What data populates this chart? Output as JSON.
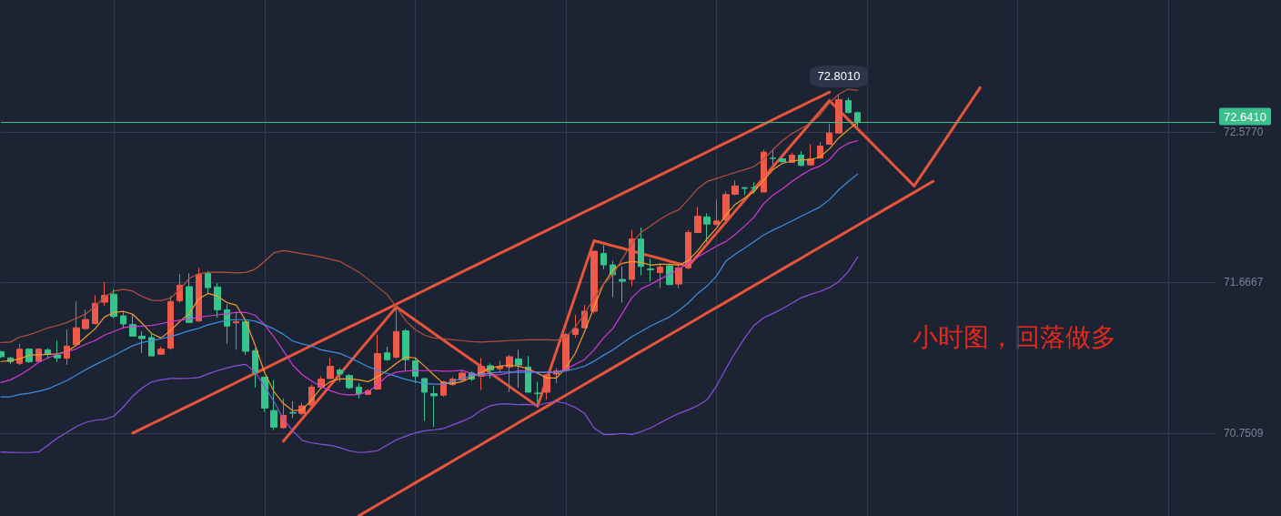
{
  "chart_data": {
    "type": "candlestick",
    "categories": [
      null,
      null,
      null,
      null,
      null,
      null,
      null,
      null,
      null,
      null,
      null,
      null,
      null,
      null,
      null,
      null,
      null,
      null,
      null,
      null,
      null,
      null,
      null,
      null,
      null,
      null,
      null,
      null,
      null,
      null,
      null,
      null,
      null,
      null,
      null,
      null,
      null,
      null,
      null,
      null,
      null,
      null,
      null,
      null,
      null,
      null,
      null,
      null,
      null,
      null,
      null,
      null,
      null,
      null,
      null,
      null,
      null,
      null,
      null,
      null,
      null,
      null,
      null,
      null,
      null,
      null,
      null,
      null,
      null,
      null,
      null,
      null,
      null,
      null,
      null,
      null,
      null,
      null,
      null,
      null,
      null,
      null,
      null,
      null,
      null,
      null,
      null,
      null,
      null,
      null,
      null,
      null,
      null,
      null,
      null,
      null,
      null,
      null,
      null,
      null,
      null,
      null,
      null,
      null,
      null,
      null,
      null,
      null,
      null,
      null,
      null,
      null,
      null,
      null,
      null,
      null,
      null,
      null,
      null,
      null,
      null,
      null,
      null,
      null,
      null,
      null,
      null,
      null,
      null,
      null
    ],
    "ohlc": [
      [
        71.246,
        71.253,
        71.209,
        71.216
      ],
      [
        71.209,
        71.214,
        71.17,
        71.187
      ],
      [
        71.176,
        71.295,
        71.166,
        71.262
      ],
      [
        71.262,
        71.268,
        71.18,
        71.185
      ],
      [
        71.188,
        71.268,
        71.185,
        71.262
      ],
      [
        71.258,
        71.268,
        71.203,
        71.231
      ],
      [
        71.227,
        71.314,
        71.185,
        71.209
      ],
      [
        71.207,
        71.381,
        71.166,
        71.281
      ],
      [
        71.29,
        71.552,
        71.277,
        71.392
      ],
      [
        71.387,
        71.503,
        71.378,
        71.442
      ],
      [
        71.418,
        71.589,
        71.411,
        71.54
      ],
      [
        71.547,
        71.668,
        71.525,
        71.589
      ],
      [
        71.595,
        71.626,
        71.448,
        71.461
      ],
      [
        71.464,
        71.485,
        71.387,
        71.415
      ],
      [
        71.411,
        71.474,
        71.341,
        71.341
      ],
      [
        71.341,
        71.369,
        71.24,
        71.326
      ],
      [
        71.332,
        71.359,
        71.221,
        71.221
      ],
      [
        71.231,
        71.277,
        71.227,
        71.262
      ],
      [
        71.268,
        71.584,
        71.258,
        71.551
      ],
      [
        71.556,
        71.718,
        71.544,
        71.65
      ],
      [
        71.641,
        71.722,
        71.42,
        71.424
      ],
      [
        71.433,
        71.755,
        71.429,
        71.715
      ],
      [
        71.722,
        71.737,
        71.599,
        71.635
      ],
      [
        71.639,
        71.663,
        71.452,
        71.501
      ],
      [
        71.501,
        71.534,
        71.295,
        71.402
      ],
      [
        71.422,
        71.489,
        71.258,
        71.429
      ],
      [
        71.429,
        71.433,
        71.227,
        71.249
      ],
      [
        71.253,
        71.268,
        71.028,
        71.12
      ],
      [
        71.093,
        71.093,
        70.882,
        70.904
      ],
      [
        70.89,
        71.075,
        70.771,
        70.789
      ],
      [
        70.786,
        70.964,
        70.78,
        70.86
      ],
      [
        70.878,
        70.946,
        70.845,
        70.874
      ],
      [
        70.872,
        70.937,
        70.86,
        70.918
      ],
      [
        70.922,
        71.047,
        70.909,
        71.032
      ],
      [
        71.032,
        71.098,
        71.025,
        71.08
      ],
      [
        71.084,
        71.209,
        71.08,
        71.158
      ],
      [
        71.135,
        71.148,
        71.065,
        71.111
      ],
      [
        71.102,
        71.111,
        71.02,
        71.028
      ],
      [
        71.032,
        71.056,
        70.964,
        70.992
      ],
      [
        70.988,
        71.02,
        70.983,
        71.01
      ],
      [
        71.02,
        71.351,
        71.014,
        71.235
      ],
      [
        71.24,
        71.277,
        71.191,
        71.198
      ],
      [
        71.213,
        71.516,
        71.203,
        71.369
      ],
      [
        71.373,
        71.384,
        71.13,
        71.198
      ],
      [
        71.191,
        71.209,
        71.056,
        71.098
      ],
      [
        71.084,
        71.084,
        70.826,
        71.001
      ],
      [
        70.992,
        71.038,
        70.789,
        70.979
      ],
      [
        70.983,
        71.069,
        70.973,
        71.065
      ],
      [
        71.047,
        71.093,
        71.038,
        71.08
      ],
      [
        71.075,
        71.13,
        71.069,
        71.117
      ],
      [
        71.117,
        71.13,
        71.069,
        71.08
      ],
      [
        71.098,
        71.209,
        71.014,
        71.158
      ],
      [
        71.161,
        71.176,
        71.084,
        71.135
      ],
      [
        71.143,
        71.191,
        71.117,
        71.158
      ],
      [
        71.154,
        71.227,
        71.001,
        71.216
      ],
      [
        71.203,
        71.258,
        71.028,
        71.166
      ],
      [
        71.154,
        71.221,
        71.001,
        71.001
      ],
      [
        70.995,
        71.065,
        70.937,
        70.994
      ],
      [
        71.001,
        71.111,
        70.955,
        71.106
      ],
      [
        71.111,
        71.148,
        71.056,
        71.13
      ],
      [
        71.135,
        71.359,
        71.13,
        71.351
      ],
      [
        71.351,
        71.47,
        71.332,
        71.387
      ],
      [
        71.392,
        71.529,
        71.387,
        71.492
      ],
      [
        71.492,
        71.856,
        71.479,
        71.856
      ],
      [
        71.842,
        71.893,
        71.746,
        71.773
      ],
      [
        71.773,
        71.797,
        71.577,
        71.713
      ],
      [
        71.685,
        71.764,
        71.544,
        71.674
      ],
      [
        71.685,
        71.985,
        71.645,
        71.93
      ],
      [
        71.93,
        71.999,
        71.709,
        71.764
      ],
      [
        71.749,
        71.81,
        71.672,
        71.744
      ],
      [
        71.727,
        71.783,
        71.632,
        71.76
      ],
      [
        71.768,
        71.773,
        71.65,
        71.654
      ],
      [
        71.657,
        71.773,
        71.632,
        71.755
      ],
      [
        71.755,
        71.985,
        71.746,
        71.97
      ],
      [
        71.97,
        72.125,
        71.966,
        72.068
      ],
      [
        72.064,
        72.086,
        71.911,
        72.021
      ],
      [
        72.018,
        72.169,
        72.018,
        72.04
      ],
      [
        72.046,
        72.218,
        72.04,
        72.2
      ],
      [
        72.202,
        72.285,
        72.196,
        72.252
      ],
      [
        72.242,
        72.242,
        72.196,
        72.237
      ],
      [
        72.242,
        72.274,
        72.206,
        72.239
      ],
      [
        72.215,
        72.472,
        72.215,
        72.457
      ],
      [
        72.421,
        72.472,
        72.38,
        72.419
      ],
      [
        72.417,
        72.421,
        72.395,
        72.399
      ],
      [
        72.395,
        72.454,
        72.395,
        72.439
      ],
      [
        72.439,
        72.463,
        72.371,
        72.377
      ],
      [
        72.38,
        72.505,
        72.377,
        72.417
      ],
      [
        72.421,
        72.518,
        72.417,
        72.494
      ],
      [
        72.505,
        72.628,
        72.505,
        72.573
      ],
      [
        72.573,
        72.801,
        72.573,
        72.776
      ],
      [
        72.77,
        72.788,
        72.693,
        72.697
      ],
      [
        72.697,
        72.702,
        72.61,
        72.641
      ],
      null,
      null,
      null,
      null,
      null,
      null,
      null,
      null,
      null,
      null,
      null,
      null,
      null,
      null,
      null,
      null,
      null,
      null,
      null,
      null,
      null,
      null,
      null,
      null,
      null,
      null,
      null,
      null,
      null,
      null,
      null,
      null,
      null,
      null,
      null,
      null,
      null,
      null
    ],
    "colors": [
      "#35c48b",
      "#35c48b",
      "#ee5a4a",
      "#35c48b",
      "#ee5a4a",
      "#35c48b",
      "#35c48b",
      "#ee5a4a",
      "#ee5a4a",
      "#ee5a4a",
      "#ee5a4a",
      "#ee5a4a",
      "#35c48b",
      "#35c48b",
      "#35c48b",
      "#35c48b",
      "#35c48b",
      "#ee5a4a",
      "#ee5a4a",
      "#ee5a4a",
      "#35c48b",
      "#ee5a4a",
      "#35c48b",
      "#35c48b",
      "#35c48b",
      "#ee5a4a",
      "#35c48b",
      "#35c48b",
      "#35c48b",
      "#35c48b",
      "#ee5a4a",
      "#35c48b",
      "#ee5a4a",
      "#ee5a4a",
      "#ee5a4a",
      "#ee5a4a",
      "#35c48b",
      "#35c48b",
      "#35c48b",
      "#ee5a4a",
      "#ee5a4a",
      "#35c48b",
      "#ee5a4a",
      "#35c48b",
      "#35c48b",
      "#35c48b",
      "#35c48b",
      "#ee5a4a",
      "#ee5a4a",
      "#ee5a4a",
      "#35c48b",
      "#ee5a4a",
      "#35c48b",
      "#ee5a4a",
      "#ee5a4a",
      "#35c48b",
      "#35c48b",
      "#35c48b",
      "#ee5a4a",
      "#ee5a4a",
      "#ee5a4a",
      "#ee5a4a",
      "#ee5a4a",
      "#ee5a4a",
      "#35c48b",
      "#35c48b",
      "#35c48b",
      "#ee5a4a",
      "#35c48b",
      "#35c48b",
      "#ee5a4a",
      "#35c48b",
      "#ee5a4a",
      "#ee5a4a",
      "#ee5a4a",
      "#35c48b",
      "#ee5a4a",
      "#ee5a4a",
      "#ee5a4a",
      "#35c48b",
      "#35c48b",
      "#ee5a4a",
      "#35c48b",
      "#35c48b",
      "#ee5a4a",
      "#35c48b",
      "#ee5a4a",
      "#ee5a4a",
      "#ee5a4a",
      "#ee5a4a",
      "#35c48b",
      "#35c48b",
      null,
      null,
      null,
      null,
      null,
      null,
      null,
      null,
      null,
      null,
      null,
      null,
      null,
      null,
      null,
      null,
      null,
      null,
      null,
      null,
      null,
      null,
      null,
      null,
      null,
      null,
      null,
      null,
      null,
      null,
      null,
      null,
      null,
      null,
      null,
      null,
      null,
      null
    ],
    "ylim": [
      70.25,
      73.38
    ],
    "yticks": [
      {
        "value": 72.577,
        "label": "72.5770"
      },
      {
        "value": 71.6667,
        "label": "71.6667"
      },
      {
        "value": 70.7509,
        "label": "70.7509"
      }
    ],
    "tick_labels": "y",
    "grid": true,
    "marker": "none",
    "series": [
      {
        "type": "line",
        "color": "#f39c2b",
        "values": [
          71.187,
          71.192,
          71.203,
          71.226,
          71.228,
          71.231,
          71.234,
          71.247,
          71.286,
          71.336,
          71.385,
          71.457,
          71.485,
          71.491,
          71.474,
          71.419,
          71.357,
          71.33,
          71.374,
          71.43,
          71.479,
          71.567,
          71.6,
          71.584,
          71.545,
          71.529,
          71.435,
          71.286,
          71.121,
          71.004,
          70.933,
          70.889,
          70.894,
          70.955,
          71.026,
          71.065,
          71.082,
          71.082,
          71.076,
          71.065,
          71.093,
          71.132,
          71.176,
          71.214,
          71.209,
          71.159,
          71.104,
          71.054,
          71.054,
          71.065,
          71.093,
          71.121,
          71.148,
          71.159,
          71.165,
          71.159,
          71.143,
          71.115,
          71.087,
          71.087,
          71.148,
          71.237,
          71.369,
          71.518,
          71.655,
          71.744,
          71.783,
          71.794,
          71.788,
          71.772,
          71.777,
          71.777,
          71.772,
          71.799,
          71.86,
          71.931,
          71.997,
          72.075,
          72.141,
          72.18,
          72.218,
          72.285,
          72.351,
          72.389,
          72.403,
          72.411,
          72.411,
          72.428,
          72.478,
          72.544,
          72.593,
          72.637,
          null,
          null,
          null,
          null,
          null,
          null,
          null,
          null,
          null,
          null,
          null,
          null,
          null,
          null,
          null,
          null,
          null,
          null,
          null,
          null,
          null,
          null,
          null,
          null,
          null,
          null,
          null,
          null,
          null,
          null,
          null,
          null,
          null,
          null,
          null,
          null,
          null,
          null
        ]
      },
      {
        "type": "line",
        "color": "#d63ad6",
        "values": [
          71.059,
          71.076,
          71.104,
          71.14,
          71.182,
          71.209,
          71.231,
          71.245,
          71.264,
          71.292,
          71.314,
          71.347,
          71.369,
          71.393,
          71.399,
          71.402,
          71.406,
          71.416,
          71.43,
          71.438,
          71.444,
          71.455,
          71.463,
          71.47,
          71.476,
          71.485,
          71.485,
          71.467,
          71.41,
          71.336,
          71.253,
          71.165,
          71.107,
          71.068,
          71.035,
          71.01,
          70.991,
          70.983,
          70.988,
          71.004,
          71.046,
          71.098,
          71.123,
          71.129,
          71.132,
          71.132,
          71.132,
          71.128,
          71.129,
          71.134,
          71.112,
          71.106,
          71.104,
          71.108,
          71.118,
          71.132,
          71.129,
          71.121,
          71.121,
          71.121,
          71.143,
          71.17,
          71.2,
          71.258,
          71.33,
          71.388,
          71.479,
          71.573,
          71.628,
          71.655,
          71.686,
          71.716,
          71.749,
          71.783,
          71.821,
          71.854,
          71.887,
          71.915,
          71.959,
          72.009,
          72.064,
          72.144,
          72.196,
          72.235,
          72.279,
          72.318,
          72.351,
          72.373,
          72.411,
          72.478,
          72.511,
          72.527,
          null,
          null,
          null,
          null,
          null,
          null,
          null,
          null,
          null,
          null,
          null,
          null,
          null,
          null,
          null,
          null,
          null,
          null,
          null,
          null,
          null,
          null,
          null,
          null,
          null,
          null,
          null,
          null,
          null,
          null,
          null,
          null,
          null,
          null,
          null,
          null,
          null,
          null
        ]
      },
      {
        "type": "line",
        "color": "#3d8fe0",
        "values": [
          70.973,
          70.973,
          70.988,
          70.995,
          71.007,
          71.021,
          71.046,
          71.071,
          71.104,
          71.137,
          71.167,
          71.195,
          71.223,
          71.253,
          71.283,
          71.302,
          71.313,
          71.325,
          71.338,
          71.355,
          71.374,
          71.388,
          71.41,
          71.424,
          71.437,
          71.441,
          71.441,
          71.432,
          71.41,
          71.385,
          71.352,
          71.311,
          71.294,
          71.281,
          71.258,
          71.247,
          71.236,
          71.212,
          71.184,
          71.155,
          71.134,
          71.115,
          71.097,
          71.079,
          71.065,
          71.054,
          71.05,
          71.05,
          71.068,
          71.085,
          71.1,
          71.109,
          71.117,
          71.123,
          71.123,
          71.121,
          71.122,
          71.121,
          71.121,
          71.123,
          71.13,
          71.143,
          71.159,
          71.189,
          71.225,
          71.258,
          71.297,
          71.338,
          71.369,
          71.402,
          71.43,
          71.457,
          71.496,
          71.542,
          71.6,
          71.645,
          71.705,
          71.796,
          71.838,
          71.876,
          71.915,
          71.954,
          71.984,
          72.011,
          72.039,
          72.069,
          72.097,
          72.125,
          72.169,
          72.229,
          72.279,
          72.325,
          null,
          null,
          null,
          null,
          null,
          null,
          null,
          null,
          null,
          null,
          null,
          null,
          null,
          null,
          null,
          null,
          null,
          null,
          null,
          null,
          null,
          null,
          null,
          null,
          null,
          null,
          null,
          null,
          null,
          null,
          null,
          null,
          null,
          null,
          null,
          null,
          null,
          null
        ]
      },
      {
        "type": "line",
        "color": "#b4503e",
        "values": [
          71.302,
          71.305,
          71.336,
          71.349,
          71.369,
          71.391,
          71.405,
          71.424,
          71.449,
          71.475,
          71.521,
          71.578,
          71.614,
          71.625,
          71.614,
          71.582,
          71.559,
          71.556,
          71.571,
          71.623,
          71.692,
          71.719,
          71.727,
          71.73,
          71.727,
          71.725,
          71.727,
          71.747,
          71.794,
          71.847,
          71.86,
          71.852,
          71.841,
          71.832,
          71.821,
          71.807,
          71.794,
          71.763,
          71.73,
          71.686,
          71.639,
          71.595,
          71.518,
          71.435,
          71.38,
          71.347,
          71.33,
          71.325,
          71.319,
          71.314,
          71.308,
          71.305,
          71.308,
          71.311,
          71.314,
          71.316,
          71.319,
          71.319,
          71.319,
          71.316,
          71.336,
          71.396,
          71.479,
          71.573,
          71.656,
          71.714,
          71.81,
          71.904,
          71.97,
          72.009,
          72.05,
          72.083,
          72.108,
          72.169,
          72.235,
          72.279,
          72.297,
          72.316,
          72.334,
          72.351,
          72.37,
          72.414,
          72.472,
          72.527,
          72.569,
          72.602,
          72.632,
          72.682,
          72.756,
          72.809,
          72.839,
          72.831,
          null,
          null,
          null,
          null,
          null,
          null,
          null,
          null,
          null,
          null,
          null,
          null,
          null,
          null,
          null,
          null,
          null,
          null,
          null,
          null,
          null,
          null,
          null,
          null,
          null,
          null,
          null,
          null,
          null,
          null,
          null,
          null,
          null,
          null,
          null,
          null,
          null,
          null
        ]
      },
      {
        "type": "line",
        "color": "#8b52e0",
        "values": [
          70.638,
          70.636,
          70.635,
          70.635,
          70.638,
          70.679,
          70.723,
          70.756,
          70.792,
          70.817,
          70.831,
          70.836,
          70.856,
          70.911,
          70.977,
          71.027,
          71.063,
          71.076,
          71.084,
          71.084,
          71.085,
          71.09,
          71.112,
          71.132,
          71.148,
          71.162,
          71.17,
          71.123,
          71.038,
          70.944,
          70.839,
          70.767,
          70.709,
          70.693,
          70.685,
          70.679,
          70.665,
          70.646,
          70.635,
          70.638,
          70.646,
          70.679,
          70.712,
          70.734,
          70.754,
          70.767,
          70.773,
          70.781,
          70.803,
          70.825,
          70.85,
          70.891,
          70.919,
          70.93,
          70.93,
          70.925,
          70.927,
          70.922,
          70.936,
          70.944,
          70.933,
          70.908,
          70.872,
          70.784,
          70.745,
          70.745,
          70.751,
          70.745,
          70.762,
          70.784,
          70.814,
          70.845,
          70.872,
          70.894,
          70.919,
          70.955,
          71.038,
          71.143,
          71.242,
          71.33,
          71.407,
          71.452,
          71.479,
          71.507,
          71.54,
          71.573,
          71.595,
          71.612,
          71.636,
          71.672,
          71.733,
          71.821,
          null,
          null,
          null,
          null,
          null,
          null,
          null,
          null,
          null,
          null,
          null,
          null,
          null,
          null,
          null,
          null,
          null,
          null,
          null,
          null,
          null,
          null,
          null,
          null,
          null,
          null,
          null,
          null,
          null,
          null,
          null,
          null,
          null,
          null,
          null,
          null,
          null,
          null
        ]
      },
      {
        "type": "line",
        "color": "#e8553a",
        "values": [
          null,
          null,
          null,
          null,
          null,
          null,
          null,
          null,
          null,
          null,
          null,
          null,
          null,
          null,
          70.753,
          70.781,
          70.809,
          70.836,
          70.864,
          70.892,
          70.92,
          70.948,
          70.976,
          71.004,
          71.032,
          71.06,
          71.088,
          71.116,
          71.144,
          71.172,
          71.2,
          71.228,
          71.256,
          71.284,
          71.312,
          71.34,
          71.368,
          71.396,
          71.423,
          71.451,
          71.479,
          71.507,
          71.535,
          71.563,
          71.591,
          71.619,
          71.647,
          71.675,
          71.703,
          71.731,
          71.759,
          71.787,
          71.815,
          71.843,
          71.871,
          71.899,
          71.927,
          71.955,
          71.983,
          72.011,
          72.039,
          72.067,
          72.095,
          72.122,
          72.15,
          72.178,
          72.206,
          72.234,
          72.262,
          72.29,
          72.318,
          72.346,
          72.374,
          72.402,
          72.43,
          72.458,
          72.486,
          72.514,
          72.542,
          72.57,
          72.598,
          72.626,
          72.654,
          72.682,
          72.71,
          72.738,
          72.766,
          72.793,
          72.821,
          null,
          null,
          null,
          null,
          null,
          null,
          null,
          null,
          null,
          null,
          null,
          null,
          null,
          null,
          null,
          null,
          null,
          null,
          null,
          null,
          null,
          null,
          null,
          null,
          null,
          null,
          null,
          null,
          null,
          null,
          null,
          null,
          null,
          null,
          null,
          null,
          null,
          null,
          null,
          null,
          null
        ]
      },
      {
        "type": "line",
        "color": "#e8553a",
        "values": [
          null,
          null,
          null,
          null,
          null,
          null,
          null,
          null,
          null,
          null,
          null,
          null,
          null,
          null,
          null,
          null,
          null,
          null,
          null,
          null,
          null,
          null,
          null,
          null,
          null,
          null,
          null,
          null,
          null,
          null,
          null,
          null,
          null,
          null,
          null,
          null,
          null,
          null,
          70.251,
          70.284,
          70.318,
          70.351,
          70.384,
          70.417,
          70.451,
          70.484,
          70.517,
          70.55,
          70.584,
          70.617,
          70.65,
          70.683,
          70.717,
          70.75,
          70.783,
          70.817,
          70.85,
          70.883,
          70.916,
          70.95,
          70.983,
          71.016,
          71.049,
          71.083,
          71.116,
          71.149,
          71.182,
          71.216,
          71.249,
          71.282,
          71.315,
          71.349,
          71.382,
          71.415,
          71.448,
          71.482,
          71.515,
          71.548,
          71.581,
          71.615,
          71.648,
          71.681,
          71.714,
          71.748,
          71.781,
          71.814,
          71.848,
          71.881,
          71.914,
          71.947,
          71.981,
          72.014,
          72.047,
          72.08,
          72.114,
          72.147,
          72.18,
          72.213,
          72.247,
          72.28,
          null,
          null,
          null,
          null,
          null,
          null,
          null,
          null,
          null,
          null,
          null,
          null,
          null,
          null,
          null,
          null,
          null,
          null,
          null,
          null,
          null,
          null,
          null,
          null,
          null,
          null,
          null,
          null,
          null,
          null
        ]
      },
      {
        "type": "line",
        "color": "#e8553a",
        "values": [
          null,
          null,
          null,
          null,
          null,
          null,
          null,
          null,
          null,
          null,
          null,
          null,
          null,
          null,
          null,
          null,
          null,
          null,
          null,
          null,
          null,
          null,
          null,
          null,
          null,
          null,
          null,
          null,
          null,
          null,
          70.704,
          70.772,
          70.84,
          70.907,
          70.975,
          71.043,
          71.111,
          71.179,
          71.247,
          71.314,
          71.382,
          71.45,
          71.518,
          71.478,
          71.438,
          71.398,
          71.357,
          71.317,
          71.277,
          71.237,
          71.197,
          71.157,
          71.117,
          71.076,
          71.036,
          70.996,
          70.956,
          70.916,
          71.083,
          71.251,
          71.418,
          71.585,
          71.753,
          71.92,
          71.905,
          71.889,
          71.874,
          71.858,
          71.843,
          71.827,
          71.812,
          71.796,
          71.781,
          71.765,
          71.832,
          71.899,
          71.966,
          72.033,
          72.1,
          72.167,
          72.234,
          72.301,
          72.368,
          72.435,
          72.502,
          72.569,
          72.636,
          72.703,
          72.77,
          72.712,
          72.655,
          72.597,
          72.54,
          72.482,
          72.425,
          72.367,
          72.31,
          72.252,
          72.337,
          72.422,
          72.507,
          72.593,
          72.678,
          72.763,
          72.848,
          null,
          null,
          null,
          null,
          null,
          null,
          null,
          null,
          null,
          null,
          null,
          null,
          null,
          null,
          null,
          null,
          null,
          null,
          null,
          null,
          null,
          null,
          null,
          null,
          null
        ]
      }
    ],
    "ref_lines": [
      {
        "axis": "y",
        "value": 72.641,
        "label": "72.6410",
        "color": "#3cbf8c"
      }
    ],
    "annotations": [
      {
        "text": "72.8010",
        "y": 72.801
      },
      "小时图，回落做多"
    ]
  }
}
